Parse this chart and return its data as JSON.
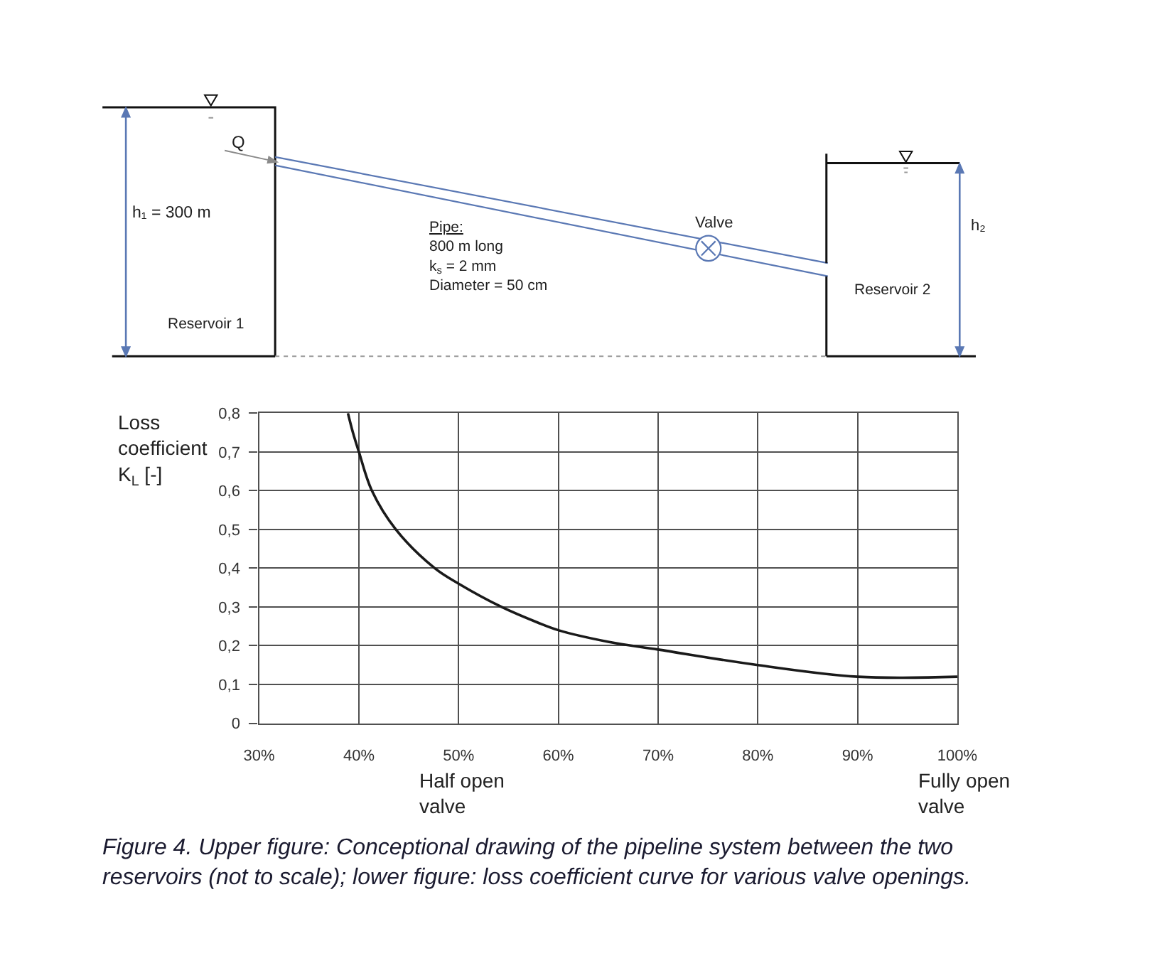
{
  "chart_data": [
    {
      "type": "other",
      "annotations": [
        "Q",
        "h₁ = 300 m",
        "Reservoir 1",
        "Pipe:\n800 m long\nk$_{s}$ = 2 mm\nDiameter = 50 cm",
        "Valve",
        "Reservoir 2",
        "h₂"
      ]
    },
    {
      "type": "line",
      "ylabel": "Loss\ncoefficient\nK$_{L}$ [-]",
      "color": "#1a1a1a",
      "x": [
        38.9,
        39.4,
        40,
        41.3,
        43.7,
        47.6,
        50,
        54.3,
        57.9,
        60,
        65,
        70,
        80,
        90,
        100
      ],
      "values": [
        0.8,
        0.75,
        0.7,
        0.6,
        0.5,
        0.4,
        0.36,
        0.3,
        0.26,
        0.24,
        0.21,
        0.19,
        0.15,
        0.12,
        0.12
      ],
      "xlim": [
        30,
        100
      ],
      "xticks": [
        {
          "value": 30,
          "label": "30%"
        },
        {
          "value": 40,
          "label": "40%"
        },
        {
          "value": 50,
          "label": "50%"
        },
        {
          "value": 60,
          "label": "60%"
        },
        {
          "value": 70,
          "label": "70%"
        },
        {
          "value": 80,
          "label": "80%"
        },
        {
          "value": 90,
          "label": "90%"
        },
        {
          "value": 100,
          "label": "100%"
        }
      ],
      "ylim": [
        0,
        0.8
      ],
      "yticks": [
        0,
        {
          "value": 0.1,
          "label": "0,1"
        },
        {
          "value": 0.2,
          "label": "0,2"
        },
        {
          "value": 0.3,
          "label": "0,3"
        },
        {
          "value": 0.4,
          "label": "0,4"
        },
        {
          "value": 0.5,
          "label": "0,5"
        },
        {
          "value": 0.6,
          "label": "0,6"
        },
        {
          "value": 0.7,
          "label": "0,7"
        },
        {
          "value": 0.8,
          "label": "0,8"
        }
      ],
      "grid": true,
      "annotations": [
        "Half open\nvalve",
        "Fully open\nvalve",
        "Figure 4. Upper figure: Conceptional drawing of the pipeline system between the two\nreservoirs (not to scale); lower figure: loss coefficient curve for various valve openings."
      ]
    }
  ]
}
